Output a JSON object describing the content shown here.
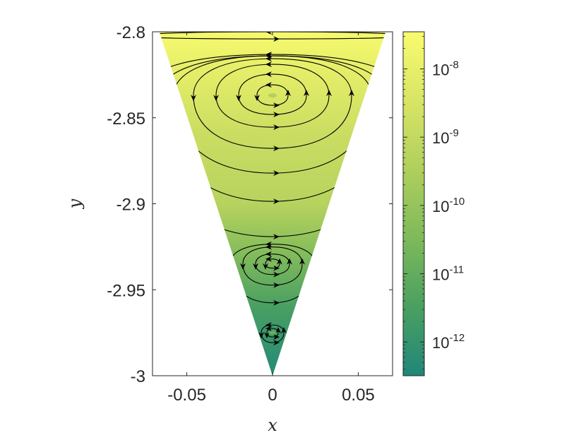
{
  "chart_data": {
    "type": "heatmap",
    "title": "",
    "xlabel": "x",
    "ylabel": "y",
    "xlim": [
      -0.07,
      0.07
    ],
    "ylim": [
      -3.0,
      -2.8
    ],
    "x_ticks": [
      {
        "value": -0.05,
        "label": "-0.05"
      },
      {
        "value": 0,
        "label": "0"
      },
      {
        "value": 0.05,
        "label": "0.05"
      }
    ],
    "y_ticks": [
      {
        "value": -2.8,
        "label": "-2.8"
      },
      {
        "value": -2.85,
        "label": "-2.85"
      },
      {
        "value": -2.9,
        "label": "-2.9"
      },
      {
        "value": -2.95,
        "label": "-2.95"
      },
      {
        "value": -3.0,
        "label": "-3"
      }
    ],
    "domain": {
      "shape": "inverted-triangle",
      "apex": [
        0,
        -3.0
      ],
      "top_left": [
        -0.066,
        -2.8
      ],
      "top_right": [
        0.066,
        -2.8
      ]
    },
    "colorbar": {
      "scale": "log",
      "range": [
        3.2e-13,
        3.5e-08
      ],
      "colormap": [
        "#21867a",
        "#4aa061",
        "#7dba5a",
        "#b0cf5c",
        "#d8e565",
        "#f9fb6e"
      ],
      "ticks": [
        {
          "value": 1e-08,
          "base": "10",
          "exponent": "-8"
        },
        {
          "value": 1e-09,
          "base": "10",
          "exponent": "-9"
        },
        {
          "value": 1e-10,
          "base": "10",
          "exponent": "-10"
        },
        {
          "value": 1e-11,
          "base": "10",
          "exponent": "-11"
        },
        {
          "value": 1e-12,
          "base": "10",
          "exponent": "-12"
        }
      ]
    },
    "field_levels": [
      {
        "y": -2.8,
        "value": 3e-08
      },
      {
        "y": -2.82,
        "value": 1e-08
      },
      {
        "y": -2.86,
        "value": 1.5e-09
      },
      {
        "y": -2.9,
        "value": 5e-10
      },
      {
        "y": -2.925,
        "value": 6e-11
      },
      {
        "y": -2.96,
        "value": 3e-12
      },
      {
        "y": -3.0,
        "value": 4e-13
      }
    ],
    "vortex_centers": [
      {
        "x": 0.0,
        "y": -2.837
      },
      {
        "x": 0.0,
        "y": -2.935
      },
      {
        "x": 0.0,
        "y": -2.975
      }
    ],
    "streamline_color": "#000000"
  }
}
